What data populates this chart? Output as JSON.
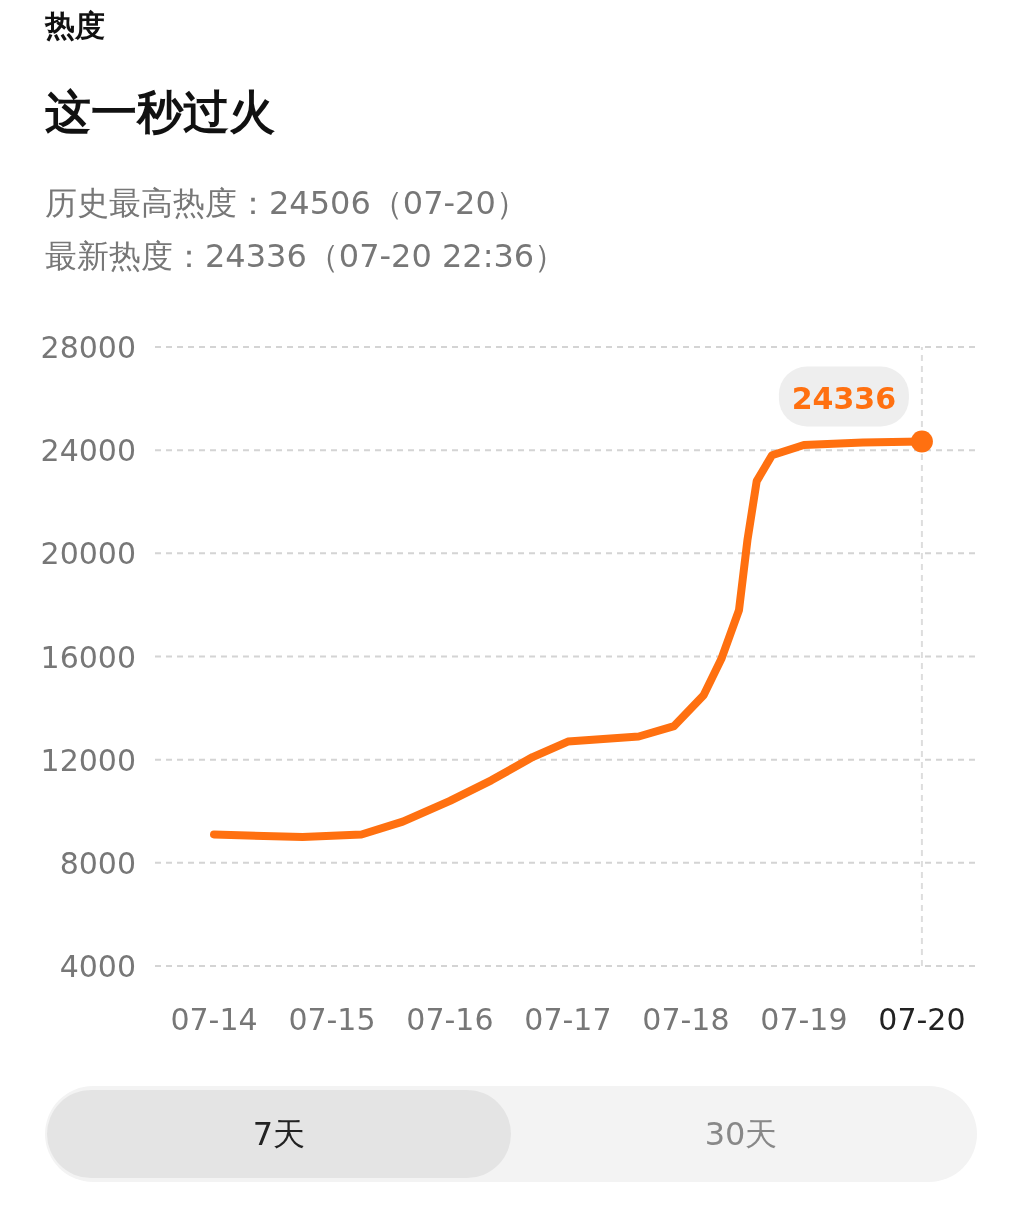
{
  "chart_data": {
    "type": "line",
    "title": "这一秒过火",
    "subtitle": "历史最高热度：24506（07-20）",
    "x": [
      "--07-14T00:00",
      "--07-14T18:00",
      "--07-15T06:00",
      "--07-15T14:24",
      "--07-16T00:00",
      "--07-16T08:24",
      "--07-16T16:48",
      "--07-17T00:00",
      "--07-17T07:12",
      "--07-17T14:24",
      "--07-17T21:36",
      "--07-18T03:36",
      "--07-18T07:12",
      "--07-18T10:48",
      "--07-18T12:30",
      "--07-18T14:24",
      "--07-18T17:30",
      "--07-19T00:00",
      "--07-19T12:00",
      "--07-20T00:00"
    ],
    "series": [
      {
        "color": "#ff7010",
        "values": [
          9100,
          9000,
          9100,
          9600,
          10400,
          11200,
          12100,
          12700,
          12800,
          12900,
          13300,
          14500,
          15900,
          17800,
          20500,
          22800,
          23800,
          24200,
          24300,
          24336
        ]
      }
    ],
    "xlim": [
      "--07-13T12:00",
      "--07-20T10:48"
    ],
    "xticks": [
      {
        "value": "--07-14",
        "label": "07-14"
      },
      {
        "value": "--07-15",
        "label": "07-15"
      },
      {
        "value": "--07-16",
        "label": "07-16"
      },
      {
        "value": "--07-17",
        "label": "07-17"
      },
      {
        "value": "--07-18",
        "label": "07-18"
      },
      {
        "value": "--07-19",
        "label": "07-19"
      },
      {
        "value": "--07-20",
        "label": "07-20"
      }
    ],
    "ylim": [
      4000,
      28000
    ],
    "yticks": [
      4000,
      8000,
      12000,
      16000,
      20000,
      24000,
      28000
    ],
    "grid": "y",
    "line_style": "solid",
    "ref_lines": [
      {
        "axis": "x",
        "value": "--07-20",
        "label": null,
        "line_style": "dashed",
        "color": "#dddddd"
      }
    ],
    "annotations": [
      "热度",
      "最新热度：24336（07-20 22:36）",
      {
        "text": "24336",
        "x": "--07-20",
        "y": 24336
      },
      "7天",
      "30天"
    ]
  }
}
